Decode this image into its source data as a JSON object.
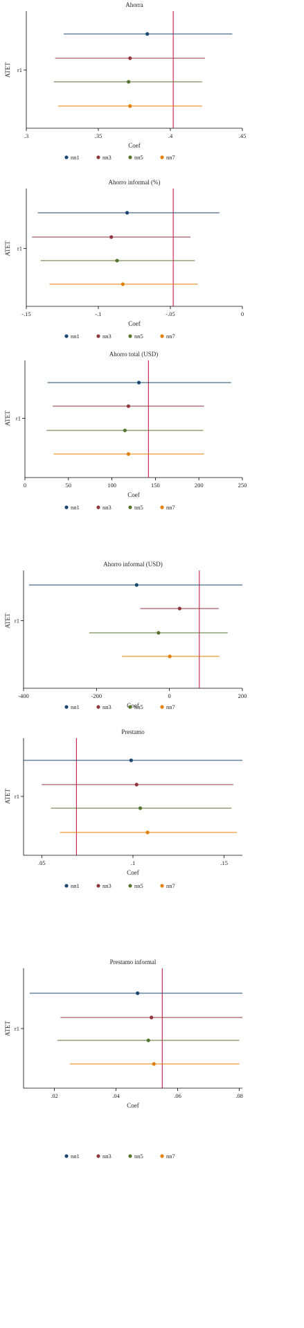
{
  "colors": {
    "nn1": "#1a476f",
    "nn3": "#90353b",
    "nn5": "#55752f",
    "nn7": "#e37e00",
    "ref_line": "#c10534",
    "axis": "#000000"
  },
  "chart_data": [
    {
      "type": "scatter",
      "title": "Ahorra",
      "xlabel": "Coef",
      "ylabel": "ATET",
      "ytick": "r1",
      "xlim": [
        0.3,
        0.45
      ],
      "xticks": [
        ".3",
        ".35",
        ".4",
        ".45"
      ],
      "xtick_values": [
        0.3,
        0.35,
        0.4,
        0.45
      ],
      "ref_line": 0.402,
      "grid": false,
      "legend": "bottom",
      "series": [
        {
          "name": "nn1",
          "coef": 0.384,
          "ci": [
            0.326,
            0.443
          ]
        },
        {
          "name": "nn3",
          "coef": 0.372,
          "ci": [
            0.32,
            0.424
          ]
        },
        {
          "name": "nn5",
          "coef": 0.371,
          "ci": [
            0.319,
            0.422
          ]
        },
        {
          "name": "nn7",
          "coef": 0.372,
          "ci": [
            0.322,
            0.422
          ]
        }
      ]
    },
    {
      "type": "scatter",
      "title": "Ahorro informal (%)",
      "xlabel": "Coef",
      "ylabel": "ATET",
      "ytick": "r1",
      "xlim": [
        -0.15,
        0
      ],
      "xticks": [
        "-.15",
        "-.1",
        "-.05",
        "0"
      ],
      "xtick_values": [
        -0.15,
        -0.1,
        -0.05,
        0
      ],
      "ref_line": -0.048,
      "grid": false,
      "legend": "bottom",
      "series": [
        {
          "name": "nn1",
          "coef": -0.08,
          "ci": [
            -0.142,
            -0.016
          ]
        },
        {
          "name": "nn3",
          "coef": -0.091,
          "ci": [
            -0.146,
            -0.036
          ]
        },
        {
          "name": "nn5",
          "coef": -0.087,
          "ci": [
            -0.14,
            -0.033
          ]
        },
        {
          "name": "nn7",
          "coef": -0.083,
          "ci": [
            -0.134,
            -0.031
          ]
        }
      ]
    },
    {
      "type": "scatter",
      "title": "Ahorro total (USD)",
      "xlabel": "Coef",
      "ylabel": "ATET",
      "ytick": "r1",
      "xlim": [
        0,
        250
      ],
      "xticks": [
        "0",
        "50",
        "100",
        "150",
        "200",
        "250"
      ],
      "xtick_values": [
        0,
        50,
        100,
        150,
        200,
        250
      ],
      "ref_line": 142,
      "grid": false,
      "legend": "bottom",
      "series": [
        {
          "name": "nn1",
          "coef": 131,
          "ci": [
            26,
            237
          ]
        },
        {
          "name": "nn3",
          "coef": 119,
          "ci": [
            32,
            206
          ]
        },
        {
          "name": "nn5",
          "coef": 115,
          "ci": [
            25,
            205
          ]
        },
        {
          "name": "nn7",
          "coef": 119,
          "ci": [
            33,
            206
          ]
        }
      ]
    },
    {
      "type": "scatter",
      "title": "Ahorro informal (USD)",
      "xlabel": "Coef",
      "ylabel": "ATET",
      "ytick": "r1",
      "xlim": [
        -400,
        200
      ],
      "xticks": [
        "-400",
        "-200",
        "0",
        "200"
      ],
      "xtick_values": [
        -400,
        -200,
        0,
        200
      ],
      "ref_line": 82,
      "grid": false,
      "legend": "bottom",
      "series": [
        {
          "name": "nn1",
          "coef": -90,
          "ci": [
            -385,
            225
          ]
        },
        {
          "name": "nn3",
          "coef": 28,
          "ci": [
            -80,
            135
          ]
        },
        {
          "name": "nn5",
          "coef": -30,
          "ci": [
            -220,
            160
          ]
        },
        {
          "name": "nn7",
          "coef": 1,
          "ci": [
            -130,
            137
          ]
        }
      ]
    },
    {
      "type": "scatter",
      "title": "Prestamo",
      "xlabel": "Coef",
      "ylabel": "ATET",
      "ytick": "r1",
      "xlim": [
        0.04,
        0.16
      ],
      "xticks": [
        ".05",
        ".1",
        ".15"
      ],
      "xtick_values": [
        0.05,
        0.1,
        0.15
      ],
      "ref_line": 0.069,
      "grid": false,
      "legend": "bottom",
      "series": [
        {
          "name": "nn1",
          "coef": 0.099,
          "ci": [
            0.04,
            0.16
          ]
        },
        {
          "name": "nn3",
          "coef": 0.102,
          "ci": [
            0.05,
            0.155
          ]
        },
        {
          "name": "nn5",
          "coef": 0.104,
          "ci": [
            0.055,
            0.154
          ]
        },
        {
          "name": "nn7",
          "coef": 0.108,
          "ci": [
            0.06,
            0.157
          ]
        }
      ]
    },
    {
      "type": "scatter",
      "title": "Prestamo informal",
      "xlabel": "Coef",
      "ylabel": "ATET",
      "ytick": "r1",
      "xlim": [
        0.01,
        0.081
      ],
      "xticks": [
        ".02",
        ".04",
        ".06",
        ".08"
      ],
      "xtick_values": [
        0.02,
        0.04,
        0.06,
        0.08
      ],
      "ref_line": 0.055,
      "grid": false,
      "legend": "bottom",
      "series": [
        {
          "name": "nn1",
          "coef": 0.047,
          "ci": [
            0.012,
            0.081
          ]
        },
        {
          "name": "nn3",
          "coef": 0.0515,
          "ci": [
            0.022,
            0.081
          ]
        },
        {
          "name": "nn5",
          "coef": 0.0505,
          "ci": [
            0.021,
            0.08
          ]
        },
        {
          "name": "nn7",
          "coef": 0.0523,
          "ci": [
            0.025,
            0.08
          ]
        }
      ]
    }
  ]
}
